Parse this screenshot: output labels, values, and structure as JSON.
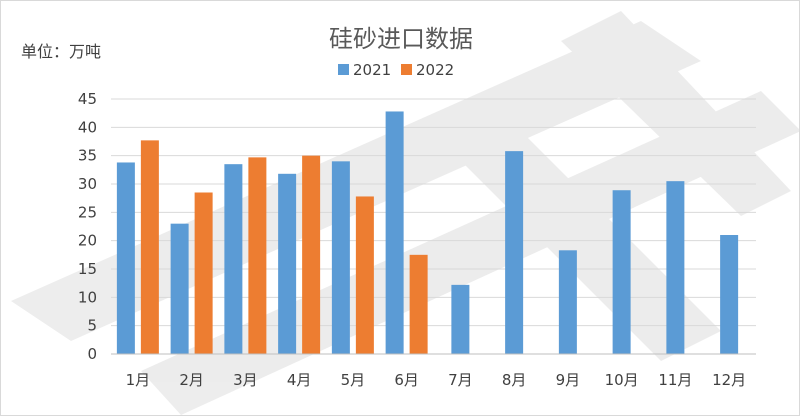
{
  "chart_data": {
    "type": "bar",
    "title": "硅砂进口数据",
    "unit_label": "单位：万吨",
    "categories": [
      "1月",
      "2月",
      "3月",
      "4月",
      "5月",
      "6月",
      "7月",
      "8月",
      "9月",
      "10月",
      "11月",
      "12月"
    ],
    "series": [
      {
        "name": "2021",
        "color": "#5b9bd5",
        "values": [
          33.8,
          23.0,
          33.5,
          31.8,
          34.0,
          42.8,
          12.2,
          35.8,
          18.3,
          28.9,
          30.5,
          21.0
        ]
      },
      {
        "name": "2022",
        "color": "#ed7d31",
        "values": [
          37.7,
          28.5,
          34.7,
          35.0,
          27.8,
          17.5,
          null,
          null,
          null,
          null,
          null,
          null
        ]
      }
    ],
    "ylim": [
      0,
      45
    ],
    "yticks": [
      0,
      5,
      10,
      15,
      20,
      25,
      30,
      35,
      40,
      45
    ],
    "grid": true,
    "legend_position": "top"
  }
}
